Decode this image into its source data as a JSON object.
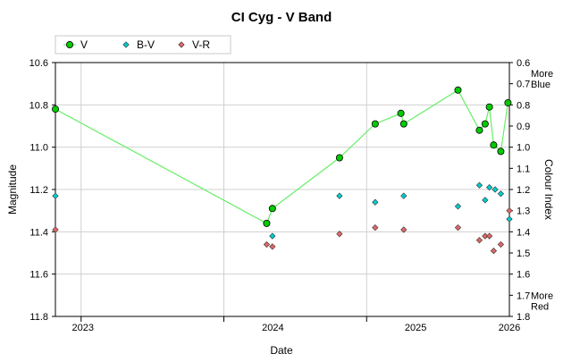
{
  "chart_data": {
    "type": "scatter",
    "title": "CI Cyg - V Band",
    "xlabel": "Date",
    "ylabel": "Magnitude",
    "y2label": "Colour Index",
    "y2_annotation_top": [
      "More",
      "Blue"
    ],
    "y2_annotation_bottom": [
      "More",
      "Red"
    ],
    "xlim": [
      2022.82,
      2026.0
    ],
    "ylim": [
      10.6,
      11.8
    ],
    "y2lim": [
      0.6,
      1.8
    ],
    "y_reversed": true,
    "y2_reversed": true,
    "x_ticks": [
      {
        "value": 2023.0,
        "label": "2023"
      },
      {
        "value": 2024.0,
        "label": "2024"
      },
      {
        "value": 2025.0,
        "label": "2025"
      },
      {
        "value": 2026.0,
        "label": "2026"
      }
    ],
    "x_grid": [
      2023.0,
      2024.0,
      2025.0
    ],
    "y_ticks": [
      {
        "value": 10.6,
        "label": "10.6"
      },
      {
        "value": 10.8,
        "label": "10.8"
      },
      {
        "value": 11.0,
        "label": "11.0"
      },
      {
        "value": 11.2,
        "label": "11.2"
      },
      {
        "value": 11.4,
        "label": "11.4"
      },
      {
        "value": 11.6,
        "label": "11.6"
      },
      {
        "value": 11.8,
        "label": "11.8"
      }
    ],
    "y2_ticks": [
      {
        "value": 0.6,
        "label": "0.6"
      },
      {
        "value": 0.7,
        "label": "0.7"
      },
      {
        "value": 0.8,
        "label": "0.8"
      },
      {
        "value": 0.9,
        "label": "0.9"
      },
      {
        "value": 1.0,
        "label": "1.0"
      },
      {
        "value": 1.1,
        "label": "1.1"
      },
      {
        "value": 1.2,
        "label": "1.2"
      },
      {
        "value": 1.3,
        "label": "1.3"
      },
      {
        "value": 1.4,
        "label": "1.4"
      },
      {
        "value": 1.5,
        "label": "1.5"
      },
      {
        "value": 1.6,
        "label": "1.6"
      },
      {
        "value": 1.7,
        "label": "1.7"
      },
      {
        "value": 1.8,
        "label": "1.8"
      }
    ],
    "grid": true,
    "legend_position": "top-left",
    "series": [
      {
        "name": "V",
        "axis": "left",
        "color": "#00cc00",
        "line_color": "#66ee66",
        "marker": "circle",
        "connected": true,
        "points": [
          [
            2022.82,
            10.82
          ],
          [
            2024.3,
            11.36
          ],
          [
            2024.34,
            11.29
          ],
          [
            2024.81,
            11.05
          ],
          [
            2025.06,
            10.89
          ],
          [
            2025.24,
            10.84
          ],
          [
            2025.26,
            10.89
          ],
          [
            2025.64,
            10.73
          ],
          [
            2025.79,
            10.92
          ],
          [
            2025.83,
            10.89
          ],
          [
            2025.86,
            10.81
          ],
          [
            2025.89,
            10.99
          ],
          [
            2025.94,
            11.02
          ],
          [
            2025.99,
            10.79
          ]
        ]
      },
      {
        "name": "B-V",
        "axis": "right",
        "color": "#00cccc",
        "marker": "diamond",
        "connected": false,
        "points": [
          [
            2022.82,
            1.23
          ],
          [
            2024.34,
            1.42
          ],
          [
            2024.81,
            1.23
          ],
          [
            2025.06,
            1.26
          ],
          [
            2025.26,
            1.23
          ],
          [
            2025.64,
            1.28
          ],
          [
            2025.79,
            1.18
          ],
          [
            2025.83,
            1.25
          ],
          [
            2025.86,
            1.19
          ],
          [
            2025.9,
            1.2
          ],
          [
            2025.94,
            1.22
          ],
          [
            2026.0,
            1.34
          ]
        ]
      },
      {
        "name": "V-R",
        "axis": "right",
        "color": "#e06666",
        "marker": "diamond",
        "connected": false,
        "points": [
          [
            2022.82,
            1.39
          ],
          [
            2024.3,
            1.46
          ],
          [
            2024.34,
            1.47
          ],
          [
            2024.81,
            1.41
          ],
          [
            2025.06,
            1.38
          ],
          [
            2025.26,
            1.39
          ],
          [
            2025.64,
            1.38
          ],
          [
            2025.79,
            1.44
          ],
          [
            2025.83,
            1.42
          ],
          [
            2025.86,
            1.42
          ],
          [
            2025.89,
            1.49
          ],
          [
            2025.94,
            1.46
          ],
          [
            2026.0,
            1.3
          ]
        ]
      }
    ]
  }
}
